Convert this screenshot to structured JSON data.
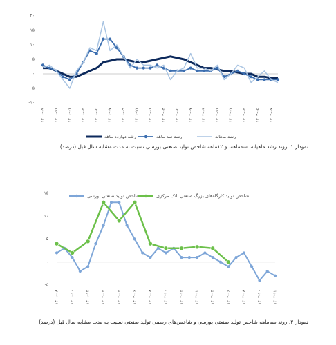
{
  "charts": [
    {
      "chart_data": {
        "type": "line",
        "categories": [
          "۱۴۰۰-۰۹",
          null,
          "۱۴۰۰-۱۱",
          null,
          "۱۴۰۱-۰۱",
          null,
          "۱۴۰۱-۰۳",
          null,
          "۱۴۰۱-۰۵",
          null,
          "۱۴۰۱-۰۷",
          null,
          "۱۴۰۱-۰۹",
          null,
          "۱۴۰۱-۱۱",
          null,
          "۱۴۰۲-۰۱",
          null,
          "۱۴۰۲-۰۳",
          null,
          "۱۴۰۲-۰۵",
          null,
          "۱۴۰۲-۰۷",
          null,
          "۱۴۰۲-۰۹",
          null,
          "۱۴۰۲-۱۱",
          null,
          "۱۴۰۳-۰۱",
          null,
          "۱۴۰۳-۰۳",
          null,
          "۱۴۰۳-۰۵",
          null,
          "۱۴۰۳-۰۷",
          null
        ],
        "series": [
          {
            "name": "رشد دوازده ماهه",
            "color": "#0d2a5c",
            "width": 3,
            "markers": false,
            "values": [
              2,
              2,
              1,
              0,
              -1,
              -1,
              0,
              1,
              2,
              4,
              4.5,
              5,
              5,
              4.5,
              4,
              4,
              4.5,
              5,
              5.5,
              6,
              5.5,
              5,
              4,
              3,
              2,
              2,
              1.5,
              1,
              1,
              0.5,
              0,
              0,
              -1,
              -1,
              -1.5,
              -1.5
            ]
          },
          {
            "name": "رشد سه ماهه",
            "color": "#3d6fb0",
            "width": 1.8,
            "markers": true,
            "values": [
              3,
              2,
              1,
              -1,
              -2,
              0,
              4,
              8,
              7,
              12,
              12,
              9,
              6,
              3,
              2,
              2,
              2,
              3,
              2,
              1,
              1,
              1,
              2,
              1,
              1,
              1,
              2,
              -1,
              0,
              1,
              0,
              -1,
              -2,
              -2,
              -2,
              -2
            ]
          },
          {
            "name": "رشد ماهانه",
            "color": "#a9c4e2",
            "width": 1.5,
            "markers": false,
            "values": [
              2,
              3,
              1,
              -2,
              -5,
              1,
              4,
              9,
              8,
              18,
              8,
              10,
              6,
              2,
              5,
              3,
              3,
              2,
              3,
              -2,
              1,
              2,
              7,
              2,
              2,
              1,
              3,
              -2,
              0,
              3,
              2,
              -3,
              -1,
              1,
              -2,
              -3
            ]
          }
        ],
        "ylim": [
          -10,
          20
        ],
        "yticks": [
          {
            "value": -10,
            "label": "-۱۰"
          },
          {
            "value": -5,
            "label": "-۵"
          },
          {
            "value": 0,
            "label": "۰"
          },
          {
            "value": 5,
            "label": "۵"
          },
          {
            "value": 10,
            "label": "۱۰"
          },
          {
            "value": 15,
            "label": "۱۵"
          },
          {
            "value": 20,
            "label": "۲۰"
          }
        ],
        "legend": "bottom",
        "caption": "نمودار ۱. روند رشد ماهیانه، سه‌ماهه، و ۱۲ماهه شاخص تولید صنعتی بورسی نسبت به مدت مشابه سال قبل (درصد)"
      }
    },
    {
      "chart_data": {
        "type": "line",
        "categories": [
          "۱۴۰۱-۰۸",
          null,
          "۱۴۰۱-۱۰",
          null,
          "۱۴۰۱-۱۲",
          null,
          "۱۴۰۲-۰۲",
          null,
          "۱۴۰۲-۰۴",
          null,
          "۱۴۰۲-۰۶",
          null,
          "۱۴۰۲-۰۸",
          null,
          "۱۴۰۲-۱۰",
          null,
          "۱۴۰۲-۱۲",
          null,
          "۱۴۰۳-۰۲",
          null,
          "۱۴۰۳-۰۴",
          null,
          "۱۴۰۳-۰۶",
          null,
          "۱۴۰۳-۰۸",
          null,
          "۱۴۰۳-۱۰",
          null,
          "۱۴۰۳-۱۲"
        ],
        "series": [
          {
            "name": "شاخص تولید صنعتی بورسی",
            "color": "#7ea6d8",
            "width": 2,
            "markers": true,
            "values": [
              2,
              3,
              1,
              -2,
              -1,
              4,
              8,
              13,
              13,
              8,
              5,
              2,
              1,
              3,
              2,
              3,
              1,
              1,
              1,
              2,
              1,
              0,
              -1,
              1,
              2,
              -1,
              -4,
              -2,
              -3
            ]
          },
          {
            "name": "شاخص تولید کارگاه‌های بزرگ صنعتی بانک مرکزی",
            "color": "#6cc04a",
            "width": 2.5,
            "markers": true,
            "x": [
              "۱۴۰۱-۰۸",
              "۱۴۰۱-۱۰",
              "۱۴۰۱-۱۲",
              "۱۴۰۲-۰۲",
              "۱۴۰۲-۰۴",
              "۱۴۰۲-۰۶",
              "۱۴۰۲-۰۸",
              "۱۴۰۲-۱۰",
              "۱۴۰۲-۱۲",
              "۱۴۰۳-۰۲",
              "۱۴۰۳-۰۴",
              "۱۴۰۳-۰۶"
            ],
            "values": [
              4,
              2,
              4.5,
              13,
              9,
              13,
              4,
              3,
              3,
              3.3,
              3,
              0
            ]
          }
        ],
        "ylim": [
          -5,
          15
        ],
        "yticks": [
          {
            "value": -5,
            "label": "-۵"
          },
          {
            "value": 0,
            "label": "۰"
          },
          {
            "value": 5,
            "label": "۵"
          },
          {
            "value": 10,
            "label": "۱۰"
          },
          {
            "value": 15,
            "label": "۱۵"
          }
        ],
        "legend": "top",
        "caption": "نمودار ۲. روند سه‌ماهه شاخص تولید صنعتی بورسی و شاخص‌های رسمی تولید صنعتی نسبت به مدت مشابه سال قبل (درصد)"
      }
    }
  ]
}
